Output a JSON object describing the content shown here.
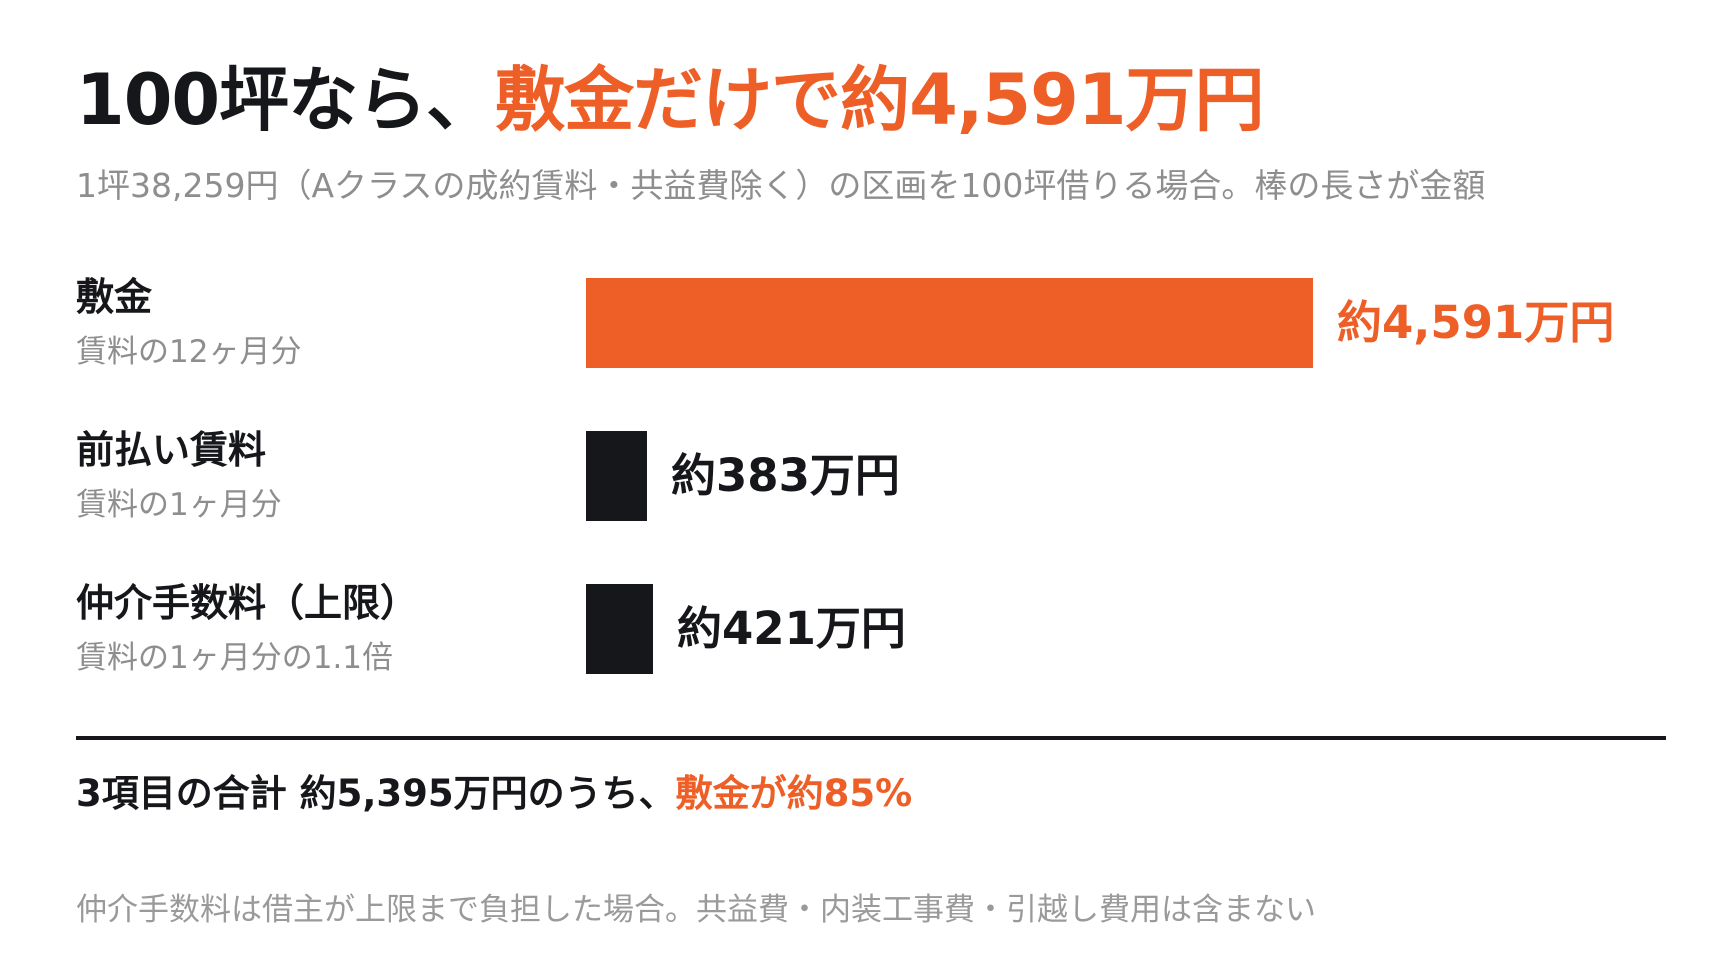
{
  "colors": {
    "accent": "#ee5f28",
    "dark": "#16171a",
    "muted": "#8e8e8e"
  },
  "header": {
    "title_prefix": "100坪なら、",
    "title_accent": "敷金だけで約4,591万円",
    "subtitle": "1坪38,259円（Aクラスの成約賃料・共益費除く）の区画を100坪借りる場合。棒の長さが金額"
  },
  "chart_data": {
    "type": "bar",
    "orientation": "horizontal",
    "unit": "万円",
    "grid": false,
    "legend": "none",
    "xlim": [
      0,
      4591
    ],
    "series": [
      {
        "categories": [
          "敷金",
          "前払い賃料",
          "仲介手数料（上限）"
        ],
        "values": [
          4591,
          383,
          421
        ]
      }
    ],
    "items": [
      {
        "label": "敷金",
        "sublabel": "賃料の12ヶ月分",
        "value": 4591,
        "value_label": "約4,591万円",
        "highlight": true
      },
      {
        "label": "前払い賃料",
        "sublabel": "賃料の1ヶ月分",
        "value": 383,
        "value_label": "約383万円",
        "highlight": false
      },
      {
        "label": "仲介手数料（上限）",
        "sublabel": "賃料の1ヶ月分の1.1倍",
        "value": 421,
        "value_label": "約421万円",
        "highlight": false
      }
    ]
  },
  "summary": {
    "text_prefix": "3項目の合計 約5,395万円のうち、",
    "text_accent": "敷金が約85%"
  },
  "footnote": "仲介手数料は借主が上限まで負担した場合。共益費・内装工事費・引越し費用は含まない"
}
